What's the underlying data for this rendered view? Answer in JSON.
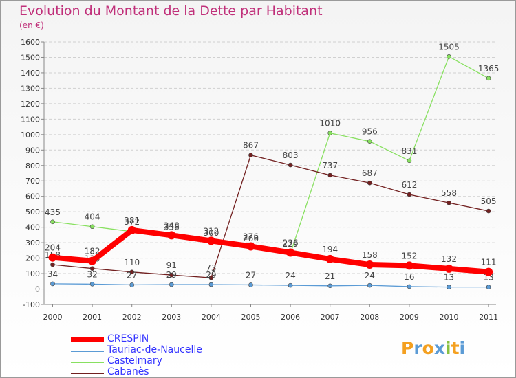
{
  "title": "Evolution du Montant de la Dette par Habitant",
  "subtitle": "(en €)",
  "logo_text": "Proxiti",
  "colors": {
    "crespin": "#ff0000",
    "tauriac": "#5b9bd5",
    "castelmary": "#88e060",
    "cabanes": "#722020",
    "grid": "#d0d0d0",
    "axis": "#888888",
    "pink": "#c0307a",
    "legend_text": "#3333ff"
  },
  "chart_data": {
    "type": "line",
    "title": "Evolution du Montant de la Dette par Habitant",
    "ylabel": "(en €)",
    "xlabel": "",
    "ylim": [
      -100,
      1600
    ],
    "yticks": [
      "-100",
      "0",
      "100",
      "200",
      "300",
      "400",
      "500",
      "600",
      "700",
      "800",
      "900",
      "1000",
      "1100",
      "1200",
      "1300",
      "1400",
      "1500",
      "1600"
    ],
    "categories": [
      "2000",
      "2001",
      "2002",
      "2003",
      "2004",
      "2005",
      "2006",
      "2007",
      "2008",
      "2009",
      "2010",
      "2011"
    ],
    "grid": true,
    "legend_position": "bottom-left",
    "series": [
      {
        "name": "Castelmary",
        "key": "castelmary",
        "values": [
          435,
          404,
          372,
          338,
          300,
          266,
          229,
          1010,
          956,
          831,
          1505,
          1365
        ],
        "labels": [
          "435",
          "404",
          "372",
          "338",
          "300",
          "266",
          "229",
          "1010",
          "956",
          "831",
          "1505",
          "1365"
        ]
      },
      {
        "name": "Cabanès",
        "key": "cabanes",
        "values": [
          158,
          133,
          110,
          91,
          73,
          867,
          803,
          737,
          687,
          612,
          558,
          505
        ],
        "labels": [
          "158",
          "133",
          "110",
          "91",
          "73",
          "867",
          "803",
          "737",
          "687",
          "612",
          "558",
          "505"
        ]
      },
      {
        "name": "Tauriac-de-Naucelle",
        "key": "tauriac",
        "values": [
          34,
          32,
          27,
          29,
          29,
          27,
          24,
          21,
          24,
          16,
          13,
          13
        ],
        "labels": [
          "34",
          "32",
          "27",
          "29",
          "29",
          "27",
          "24",
          "21",
          "24",
          "16",
          "13",
          "13"
        ]
      },
      {
        "name": "CRESPIN",
        "key": "crespin",
        "values": [
          204,
          182,
          381,
          348,
          312,
          276,
          236,
          194,
          158,
          152,
          132,
          111
        ],
        "labels": [
          "204",
          "182",
          "381",
          "348",
          "312",
          "276",
          "236",
          "194",
          "158",
          "152",
          "132",
          "111"
        ]
      }
    ]
  },
  "legend": [
    {
      "key": "crespin",
      "label": "CRESPIN"
    },
    {
      "key": "tauriac",
      "label": "Tauriac-de-Naucelle"
    },
    {
      "key": "castelmary",
      "label": "Castelmary"
    },
    {
      "key": "cabanes",
      "label": "Cabanès"
    }
  ]
}
